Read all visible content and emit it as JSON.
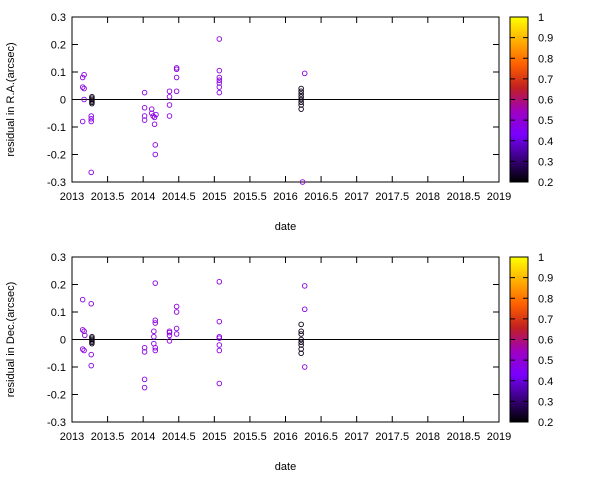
{
  "chart_data": [
    {
      "type": "scatter",
      "xlabel": "date",
      "ylabel": "residual in R.A.(arcsec)",
      "xlim": [
        2013,
        2019
      ],
      "ylim": [
        -0.3,
        0.3
      ],
      "xticks": [
        "2013",
        "2013.5",
        "2014",
        "2014.5",
        "2015",
        "2015.5",
        "2016",
        "2016.5",
        "2017",
        "2017.5",
        "2018",
        "2018.5",
        "2019"
      ],
      "yticks": [
        "-0.3",
        "-0.2",
        "-0.1",
        "0",
        "0.1",
        "0.2",
        "0.3"
      ],
      "zero_line": true,
      "colorbar": {
        "range": [
          0.2,
          1
        ],
        "ticks": [
          "0.2",
          "0.3",
          "0.4",
          "0.5",
          "0.6",
          "0.7",
          "0.8",
          "0.9",
          "1"
        ],
        "palette": [
          "#000000",
          "#3a0080",
          "#7a00ff",
          "#a000c0",
          "#c02020",
          "#ff6000",
          "#ffb000",
          "#ffff00"
        ]
      },
      "points": [
        {
          "x": 2013.17,
          "y": 0.09,
          "c": 0.48
        },
        {
          "x": 2013.15,
          "y": 0.08,
          "c": 0.48
        },
        {
          "x": 2013.17,
          "y": 0.04,
          "c": 0.48
        },
        {
          "x": 2013.15,
          "y": 0.045,
          "c": 0.48
        },
        {
          "x": 2013.17,
          "y": 0.0,
          "c": 0.48
        },
        {
          "x": 2013.15,
          "y": -0.08,
          "c": 0.48
        },
        {
          "x": 2013.28,
          "y": 0.005,
          "c": 0.22
        },
        {
          "x": 2013.28,
          "y": 0.0,
          "c": 0.22
        },
        {
          "x": 2013.28,
          "y": -0.005,
          "c": 0.22
        },
        {
          "x": 2013.28,
          "y": -0.01,
          "c": 0.22
        },
        {
          "x": 2013.28,
          "y": 0.01,
          "c": 0.22
        },
        {
          "x": 2013.28,
          "y": -0.015,
          "c": 0.22
        },
        {
          "x": 2013.27,
          "y": -0.06,
          "c": 0.48
        },
        {
          "x": 2013.27,
          "y": -0.07,
          "c": 0.48
        },
        {
          "x": 2013.27,
          "y": -0.08,
          "c": 0.48
        },
        {
          "x": 2013.27,
          "y": -0.265,
          "c": 0.48
        },
        {
          "x": 2014.02,
          "y": 0.025,
          "c": 0.48
        },
        {
          "x": 2014.02,
          "y": -0.03,
          "c": 0.48
        },
        {
          "x": 2014.02,
          "y": -0.06,
          "c": 0.48
        },
        {
          "x": 2014.02,
          "y": -0.075,
          "c": 0.48
        },
        {
          "x": 2014.12,
          "y": -0.035,
          "c": 0.48
        },
        {
          "x": 2014.12,
          "y": -0.05,
          "c": 0.48
        },
        {
          "x": 2014.14,
          "y": -0.06,
          "c": 0.48
        },
        {
          "x": 2014.16,
          "y": -0.065,
          "c": 0.48
        },
        {
          "x": 2014.18,
          "y": -0.055,
          "c": 0.48
        },
        {
          "x": 2014.16,
          "y": -0.09,
          "c": 0.48
        },
        {
          "x": 2014.17,
          "y": -0.165,
          "c": 0.48
        },
        {
          "x": 2014.17,
          "y": -0.2,
          "c": 0.48
        },
        {
          "x": 2014.37,
          "y": 0.03,
          "c": 0.48
        },
        {
          "x": 2014.37,
          "y": 0.01,
          "c": 0.48
        },
        {
          "x": 2014.37,
          "y": -0.02,
          "c": 0.48
        },
        {
          "x": 2014.37,
          "y": -0.06,
          "c": 0.48
        },
        {
          "x": 2014.47,
          "y": 0.115,
          "c": 0.48
        },
        {
          "x": 2014.47,
          "y": 0.11,
          "c": 0.48
        },
        {
          "x": 2014.47,
          "y": 0.08,
          "c": 0.48
        },
        {
          "x": 2014.47,
          "y": 0.03,
          "c": 0.48
        },
        {
          "x": 2015.07,
          "y": 0.22,
          "c": 0.48
        },
        {
          "x": 2015.07,
          "y": 0.105,
          "c": 0.48
        },
        {
          "x": 2015.07,
          "y": 0.08,
          "c": 0.48
        },
        {
          "x": 2015.07,
          "y": 0.07,
          "c": 0.48
        },
        {
          "x": 2015.07,
          "y": 0.06,
          "c": 0.48
        },
        {
          "x": 2015.07,
          "y": 0.045,
          "c": 0.48
        },
        {
          "x": 2015.07,
          "y": 0.025,
          "c": 0.48
        },
        {
          "x": 2016.22,
          "y": 0.04,
          "c": 0.22
        },
        {
          "x": 2016.22,
          "y": 0.03,
          "c": 0.22
        },
        {
          "x": 2016.22,
          "y": 0.02,
          "c": 0.22
        },
        {
          "x": 2016.22,
          "y": 0.01,
          "c": 0.22
        },
        {
          "x": 2016.22,
          "y": 0.0,
          "c": 0.22
        },
        {
          "x": 2016.22,
          "y": -0.01,
          "c": 0.22
        },
        {
          "x": 2016.22,
          "y": -0.02,
          "c": 0.22
        },
        {
          "x": 2016.22,
          "y": -0.035,
          "c": 0.22
        },
        {
          "x": 2016.27,
          "y": 0.095,
          "c": 0.48
        },
        {
          "x": 2016.24,
          "y": -0.3,
          "c": 0.48
        }
      ]
    },
    {
      "type": "scatter",
      "xlabel": "date",
      "ylabel": "residual in Dec.(arcsec)",
      "xlim": [
        2013,
        2019
      ],
      "ylim": [
        -0.3,
        0.3
      ],
      "xticks": [
        "2013",
        "2013.5",
        "2014",
        "2014.5",
        "2015",
        "2015.5",
        "2016",
        "2016.5",
        "2017",
        "2017.5",
        "2018",
        "2018.5",
        "2019"
      ],
      "yticks": [
        "-0.3",
        "-0.2",
        "-0.1",
        "0",
        "0.1",
        "0.2",
        "0.3"
      ],
      "zero_line": true,
      "colorbar": {
        "range": [
          0.2,
          1
        ],
        "ticks": [
          "0.2",
          "0.3",
          "0.4",
          "0.5",
          "0.6",
          "0.7",
          "0.8",
          "0.9",
          "1"
        ],
        "palette": [
          "#000000",
          "#3a0080",
          "#7a00ff",
          "#a000c0",
          "#c02020",
          "#ff6000",
          "#ffb000",
          "#ffff00"
        ]
      },
      "points": [
        {
          "x": 2013.15,
          "y": 0.145,
          "c": 0.48
        },
        {
          "x": 2013.15,
          "y": 0.035,
          "c": 0.48
        },
        {
          "x": 2013.17,
          "y": 0.03,
          "c": 0.48
        },
        {
          "x": 2013.18,
          "y": 0.015,
          "c": 0.48
        },
        {
          "x": 2013.15,
          "y": -0.035,
          "c": 0.48
        },
        {
          "x": 2013.17,
          "y": -0.04,
          "c": 0.48
        },
        {
          "x": 2013.28,
          "y": 0.01,
          "c": 0.22
        },
        {
          "x": 2013.28,
          "y": 0.005,
          "c": 0.22
        },
        {
          "x": 2013.28,
          "y": 0.0,
          "c": 0.22
        },
        {
          "x": 2013.28,
          "y": -0.005,
          "c": 0.22
        },
        {
          "x": 2013.28,
          "y": -0.01,
          "c": 0.22
        },
        {
          "x": 2013.28,
          "y": -0.015,
          "c": 0.22
        },
        {
          "x": 2013.27,
          "y": 0.13,
          "c": 0.48
        },
        {
          "x": 2013.27,
          "y": -0.055,
          "c": 0.48
        },
        {
          "x": 2013.27,
          "y": -0.095,
          "c": 0.48
        },
        {
          "x": 2014.02,
          "y": -0.03,
          "c": 0.48
        },
        {
          "x": 2014.02,
          "y": -0.045,
          "c": 0.48
        },
        {
          "x": 2014.02,
          "y": -0.145,
          "c": 0.48
        },
        {
          "x": 2014.02,
          "y": -0.175,
          "c": 0.48
        },
        {
          "x": 2014.17,
          "y": 0.205,
          "c": 0.48
        },
        {
          "x": 2014.17,
          "y": 0.07,
          "c": 0.48
        },
        {
          "x": 2014.17,
          "y": 0.06,
          "c": 0.48
        },
        {
          "x": 2014.15,
          "y": 0.03,
          "c": 0.48
        },
        {
          "x": 2014.15,
          "y": 0.01,
          "c": 0.48
        },
        {
          "x": 2014.15,
          "y": -0.015,
          "c": 0.48
        },
        {
          "x": 2014.17,
          "y": -0.03,
          "c": 0.48
        },
        {
          "x": 2014.17,
          "y": -0.04,
          "c": 0.48
        },
        {
          "x": 2014.37,
          "y": 0.03,
          "c": 0.48
        },
        {
          "x": 2014.37,
          "y": 0.025,
          "c": 0.48
        },
        {
          "x": 2014.37,
          "y": 0.015,
          "c": 0.48
        },
        {
          "x": 2014.37,
          "y": -0.005,
          "c": 0.48
        },
        {
          "x": 2014.47,
          "y": 0.12,
          "c": 0.48
        },
        {
          "x": 2014.47,
          "y": 0.1,
          "c": 0.48
        },
        {
          "x": 2014.47,
          "y": 0.04,
          "c": 0.48
        },
        {
          "x": 2014.47,
          "y": 0.02,
          "c": 0.48
        },
        {
          "x": 2015.07,
          "y": 0.21,
          "c": 0.48
        },
        {
          "x": 2015.07,
          "y": 0.065,
          "c": 0.48
        },
        {
          "x": 2015.07,
          "y": 0.01,
          "c": 0.48
        },
        {
          "x": 2015.07,
          "y": 0.005,
          "c": 0.48
        },
        {
          "x": 2015.07,
          "y": -0.02,
          "c": 0.48
        },
        {
          "x": 2015.07,
          "y": -0.04,
          "c": 0.48
        },
        {
          "x": 2015.07,
          "y": -0.16,
          "c": 0.48
        },
        {
          "x": 2016.22,
          "y": 0.055,
          "c": 0.22
        },
        {
          "x": 2016.22,
          "y": 0.03,
          "c": 0.22
        },
        {
          "x": 2016.22,
          "y": 0.02,
          "c": 0.22
        },
        {
          "x": 2016.22,
          "y": 0.0,
          "c": 0.22
        },
        {
          "x": 2016.22,
          "y": -0.01,
          "c": 0.22
        },
        {
          "x": 2016.22,
          "y": -0.02,
          "c": 0.22
        },
        {
          "x": 2016.22,
          "y": -0.035,
          "c": 0.22
        },
        {
          "x": 2016.22,
          "y": -0.05,
          "c": 0.22
        },
        {
          "x": 2016.27,
          "y": 0.195,
          "c": 0.48
        },
        {
          "x": 2016.27,
          "y": 0.11,
          "c": 0.48
        },
        {
          "x": 2016.27,
          "y": -0.1,
          "c": 0.48
        }
      ]
    }
  ]
}
